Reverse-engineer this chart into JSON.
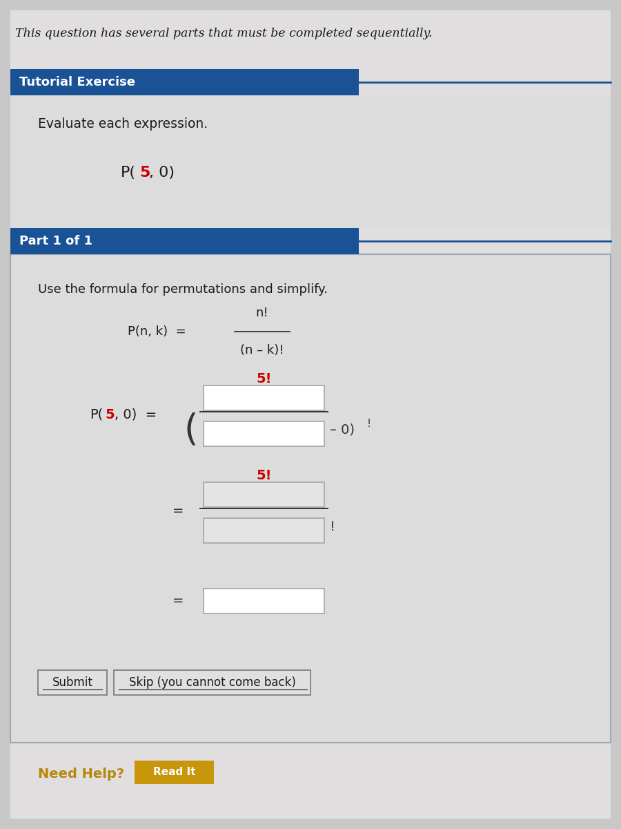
{
  "bg_color": "#c8c8c8",
  "header_italic_text": "This question has several parts that must be completed sequentially.",
  "tutorial_bar_color": "#1a5296",
  "tutorial_bar_text": "Tutorial Exercise",
  "evaluate_text": "Evaluate each expression.",
  "part_bar_color": "#1a5296",
  "part_bar_text": "Part 1 of 1",
  "instruction_text": "Use the formula for permutations and simplify.",
  "submit_text": "Submit",
  "skip_text": "Skip (you cannot come back)",
  "need_help_text": "Need Help?",
  "read_it_text": "Read It",
  "need_help_color": "#b8860b",
  "read_it_bg": "#c8960a",
  "red_color": "#cc0000",
  "white": "#ffffff",
  "light_gray": "#e8e8e8",
  "panel_bg": "#dcdcdc",
  "input_border": "#aaaaaa",
  "line_color": "#444444",
  "dark_blue_line": "#1a5296"
}
